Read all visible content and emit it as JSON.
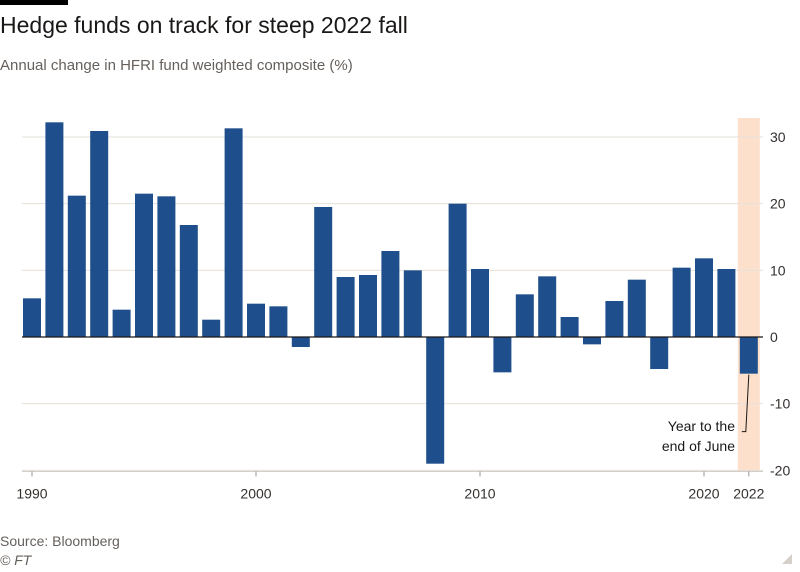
{
  "title": "Hedge funds on track for steep 2022 fall",
  "subtitle": "Annual change in HFRI fund weighted composite (%)",
  "source": "Source: Bloomberg",
  "credit": "© FT",
  "colors": {
    "bar": "#1e4e8c",
    "highlight": "#fde0cc",
    "grid": "#e6e0da",
    "zero": "#1a1817",
    "tick_text": "#33302e"
  },
  "chart_data": {
    "type": "bar",
    "title": "Hedge funds on track for steep 2022 fall",
    "subtitle": "Annual change in HFRI fund weighted composite (%)",
    "xlabel": "",
    "ylabel": "",
    "categories": [
      1990,
      1991,
      1992,
      1993,
      1994,
      1995,
      1996,
      1997,
      1998,
      1999,
      2000,
      2001,
      2002,
      2003,
      2004,
      2005,
      2006,
      2007,
      2008,
      2009,
      2010,
      2011,
      2012,
      2013,
      2014,
      2015,
      2016,
      2017,
      2018,
      2019,
      2020,
      2021,
      2022
    ],
    "values": [
      5.8,
      32.2,
      21.2,
      30.9,
      4.1,
      21.5,
      21.1,
      16.8,
      2.6,
      31.3,
      5.0,
      4.6,
      -1.5,
      19.5,
      9.0,
      9.3,
      12.9,
      10.0,
      -19.0,
      20.0,
      10.2,
      -5.3,
      6.4,
      9.1,
      3.0,
      -1.1,
      5.4,
      8.6,
      -4.8,
      10.4,
      11.8,
      10.2,
      -5.5
    ],
    "ylim": [
      -20,
      32
    ],
    "yticks": [
      30,
      20,
      10,
      0,
      -10,
      -20
    ],
    "xtick_labels": [
      "1990",
      "2000",
      "2010",
      "2020",
      "2022"
    ],
    "y_axis_side": "right",
    "grid": true,
    "highlight_period": "2022",
    "annotation": [
      "Year to the",
      "end of June"
    ]
  }
}
